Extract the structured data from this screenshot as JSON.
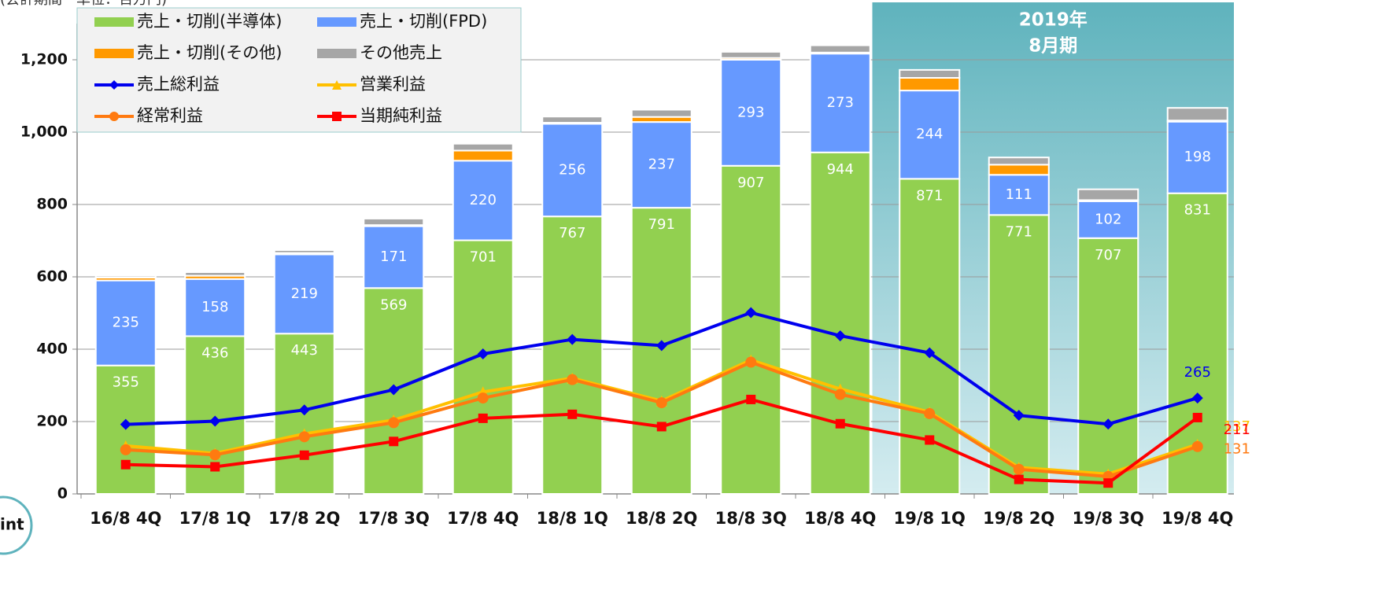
{
  "chart_data": {
    "type": "bar-line",
    "subtitle": "(会計期間　単位：百万円)",
    "badge": "int",
    "annotation": [
      "2019年",
      "8月期"
    ],
    "categories": [
      "16/8 4Q",
      "17/8 1Q",
      "17/8 2Q",
      "17/8 3Q",
      "17/8 4Q",
      "18/8 1Q",
      "18/8 2Q",
      "18/8 3Q",
      "18/8 4Q",
      "19/8 1Q",
      "19/8 2Q",
      "19/8 3Q",
      "19/8 4Q"
    ],
    "ylim": [
      0,
      1300
    ],
    "yticks": [
      0,
      200,
      400,
      600,
      800,
      {
        "value": 1000,
        "label": "1,000"
      },
      {
        "value": 1200,
        "label": "1,200"
      }
    ],
    "grid": true,
    "bar_series": [
      {
        "name": "売上・切削(半導体)",
        "color": "#92d050",
        "values": [
          355,
          436,
          443,
          569,
          701,
          767,
          791,
          907,
          944,
          871,
          771,
          707,
          831
        ],
        "labels": true
      },
      {
        "name": "売上・切削(FPD)",
        "color": "#6699ff",
        "values": [
          235,
          158,
          219,
          171,
          220,
          256,
          237,
          293,
          273,
          244,
          111,
          102,
          198
        ],
        "labels": true
      },
      {
        "name": "売上・切削(その他)",
        "color": "#ff9900",
        "values": [
          8,
          9,
          4,
          3,
          28,
          3,
          14,
          5,
          3,
          35,
          28,
          3,
          3
        ],
        "labels": false
      },
      {
        "name": "その他売上",
        "color": "#a6a6a6",
        "values": [
          5,
          10,
          8,
          18,
          19,
          17,
          20,
          17,
          20,
          22,
          20,
          30,
          35
        ],
        "labels": false
      }
    ],
    "line_series": [
      {
        "name": "売上総利益",
        "color": "#0000ee",
        "marker": "diamond",
        "values": [
          192,
          201,
          232,
          288,
          387,
          427,
          410,
          501,
          437,
          390,
          217,
          193,
          265
        ]
      },
      {
        "name": "営業利益",
        "color": "#ffc000",
        "marker": "triangle",
        "values": [
          133,
          112,
          166,
          204,
          282,
          320,
          257,
          370,
          290,
          226,
          73,
          55,
          137
        ]
      },
      {
        "name": "経常利益",
        "color": "#ff7a10",
        "marker": "circle",
        "values": [
          122,
          108,
          158,
          197,
          265,
          316,
          252,
          364,
          275,
          222,
          68,
          48,
          131
        ]
      },
      {
        "name": "当期純利益",
        "color": "#ff0000",
        "marker": "square",
        "values": [
          81,
          75,
          107,
          145,
          209,
          220,
          186,
          261,
          194,
          149,
          40,
          30,
          211
        ]
      }
    ],
    "legend_order": [
      [
        0,
        1
      ],
      [
        2,
        3
      ]
    ]
  }
}
